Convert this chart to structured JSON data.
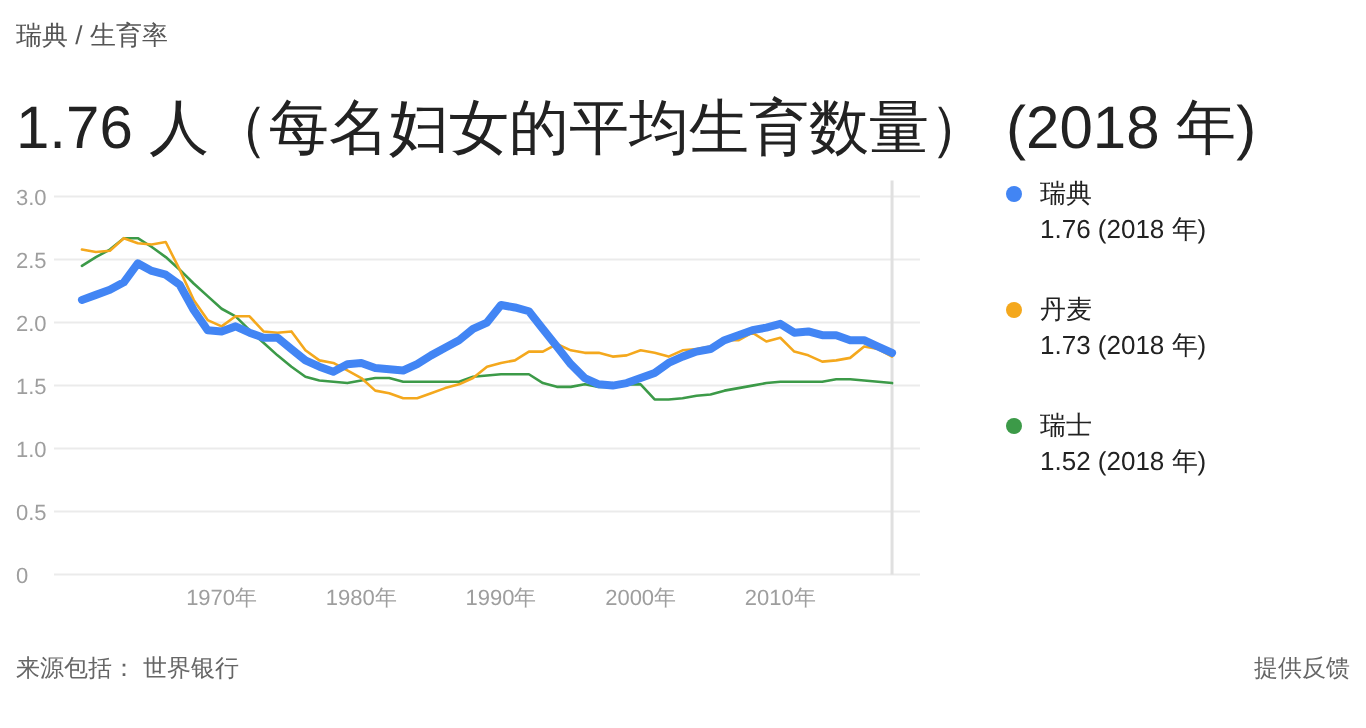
{
  "chart_data": {
    "type": "line",
    "title": "1.76 人（每名妇女的平均生育数量） (2018 年)",
    "annotations": [
      "瑞典 / 生育率",
      "来源包括： 世界银行",
      "提供反馈",
      "1.76 (2018 年)",
      "1.73 (2018 年)",
      "1.52 (2018 年)"
    ],
    "x": [
      1960,
      1961,
      1962,
      1963,
      1964,
      1965,
      1966,
      1967,
      1968,
      1969,
      1970,
      1971,
      1972,
      1973,
      1974,
      1975,
      1976,
      1977,
      1978,
      1979,
      1980,
      1981,
      1982,
      1983,
      1984,
      1985,
      1986,
      1987,
      1988,
      1989,
      1990,
      1991,
      1992,
      1993,
      1994,
      1995,
      1996,
      1997,
      1998,
      1999,
      2000,
      2001,
      2002,
      2003,
      2004,
      2005,
      2006,
      2007,
      2008,
      2009,
      2010,
      2011,
      2012,
      2013,
      2014,
      2015,
      2016,
      2017,
      2018
    ],
    "series": [
      {
        "name": "瑞典",
        "color": "#4285f4",
        "values": [
          2.18,
          2.22,
          2.26,
          2.32,
          2.47,
          2.41,
          2.38,
          2.3,
          2.1,
          1.94,
          1.93,
          1.97,
          1.92,
          1.88,
          1.88,
          1.79,
          1.7,
          1.65,
          1.61,
          1.67,
          1.68,
          1.64,
          1.63,
          1.62,
          1.67,
          1.74,
          1.8,
          1.86,
          1.95,
          2.0,
          2.14,
          2.12,
          2.09,
          1.95,
          1.81,
          1.67,
          1.56,
          1.51,
          1.5,
          1.52,
          1.56,
          1.6,
          1.68,
          1.73,
          1.77,
          1.79,
          1.86,
          1.9,
          1.94,
          1.96,
          1.99,
          1.92,
          1.93,
          1.9,
          1.9,
          1.86,
          1.86,
          1.81,
          1.76
        ]
      },
      {
        "name": "丹麦",
        "color": "#f4a81d",
        "values": [
          2.58,
          2.56,
          2.57,
          2.67,
          2.63,
          2.62,
          2.64,
          2.42,
          2.18,
          2.02,
          1.97,
          2.05,
          2.05,
          1.93,
          1.92,
          1.93,
          1.78,
          1.7,
          1.68,
          1.62,
          1.56,
          1.46,
          1.44,
          1.4,
          1.4,
          1.44,
          1.48,
          1.51,
          1.56,
          1.65,
          1.68,
          1.7,
          1.77,
          1.77,
          1.83,
          1.78,
          1.76,
          1.76,
          1.73,
          1.74,
          1.78,
          1.76,
          1.73,
          1.78,
          1.79,
          1.81,
          1.86,
          1.86,
          1.92,
          1.85,
          1.88,
          1.77,
          1.74,
          1.69,
          1.7,
          1.72,
          1.81,
          1.79,
          1.73
        ]
      },
      {
        "name": "瑞士",
        "color": "#3c9a48",
        "values": [
          2.45,
          2.52,
          2.58,
          2.67,
          2.67,
          2.6,
          2.52,
          2.42,
          2.31,
          2.21,
          2.11,
          2.05,
          1.94,
          1.84,
          1.74,
          1.65,
          1.57,
          1.54,
          1.53,
          1.52,
          1.54,
          1.56,
          1.56,
          1.53,
          1.53,
          1.53,
          1.53,
          1.53,
          1.57,
          1.58,
          1.59,
          1.59,
          1.59,
          1.52,
          1.49,
          1.49,
          1.51,
          1.49,
          1.49,
          1.51,
          1.51,
          1.39,
          1.39,
          1.4,
          1.42,
          1.43,
          1.46,
          1.48,
          1.5,
          1.52,
          1.53,
          1.53,
          1.53,
          1.53,
          1.55,
          1.55,
          1.54,
          1.53,
          1.52
        ]
      }
    ],
    "xlim": [
      1958,
      2020
    ],
    "ylim": [
      0,
      3
    ],
    "xticks": [
      {
        "value": 1970,
        "label": "1970年"
      },
      {
        "value": 1980,
        "label": "1980年"
      },
      {
        "value": 1990,
        "label": "1990年"
      },
      {
        "value": 2000,
        "label": "2000年"
      },
      {
        "value": 2010,
        "label": "2010年"
      }
    ],
    "yticks": [
      0,
      {
        "value": 0.5,
        "label": "0.5"
      },
      {
        "value": 1,
        "label": "1.0"
      },
      {
        "value": 1.5,
        "label": "1.5"
      },
      {
        "value": 2,
        "label": "2.0"
      },
      {
        "value": 2.5,
        "label": "2.5"
      },
      {
        "value": 3,
        "label": "3.0"
      }
    ],
    "ref_lines": [
      {
        "axis": "x",
        "value": 2018,
        "color": "#e0e0e0"
      }
    ],
    "grid": "y",
    "legend": "right"
  }
}
